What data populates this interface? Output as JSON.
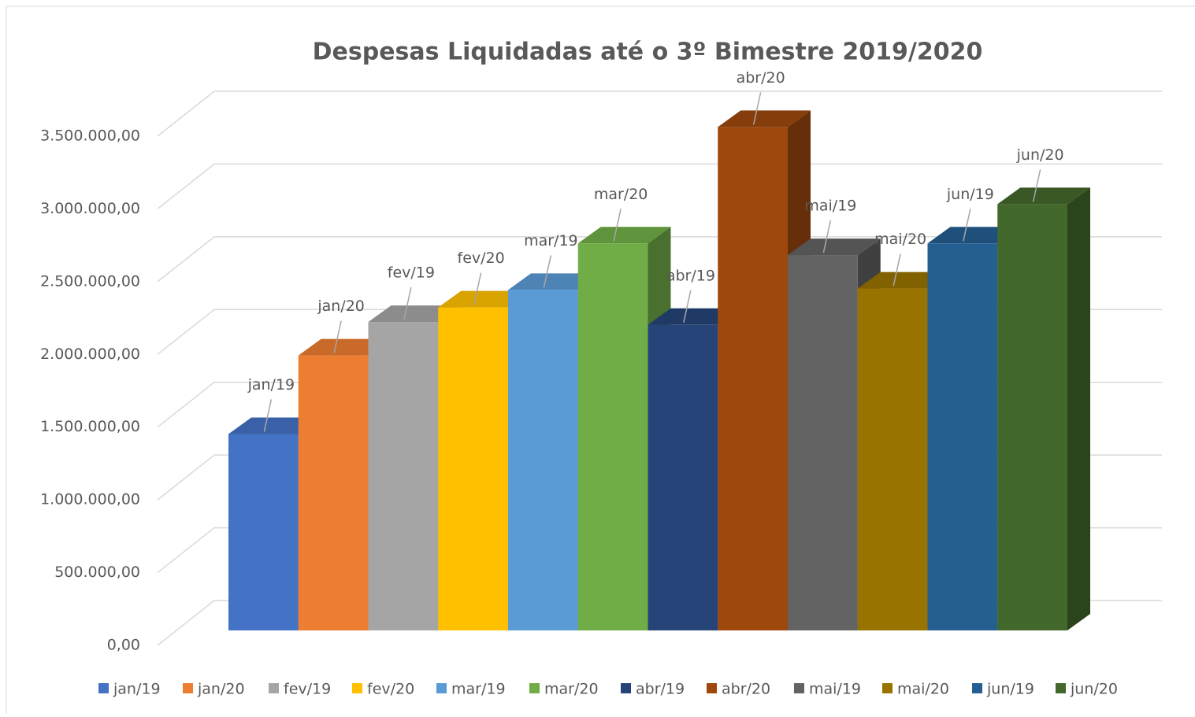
{
  "chart_data": {
    "type": "bar3d",
    "title": "Despesas Liquidadas até o 3º Bimestre 2019/2020",
    "categories": [
      "jan/19",
      "jan/20",
      "fev/19",
      "fev/20",
      "mar/19",
      "mar/20",
      "abr/19",
      "abr/20",
      "mai/19",
      "mai/20",
      "jun/19",
      "jun/20"
    ],
    "values": [
      1350000,
      1890000,
      2120000,
      2220000,
      2340000,
      2660000,
      2100000,
      3460000,
      2580000,
      2350000,
      2660000,
      2930000
    ],
    "colors": [
      "#4472c4",
      "#ed7d31",
      "#a5a5a5",
      "#ffc000",
      "#5b9bd5",
      "#70ad47",
      "#264478",
      "#9e480e",
      "#636363",
      "#997300",
      "#255e91",
      "#43682b"
    ],
    "ylim": [
      0,
      3500000
    ],
    "yticks": [
      {
        "value": 0,
        "label": "0,00"
      },
      {
        "value": 500000,
        "label": "500.000,00"
      },
      {
        "value": 1000000,
        "label": "1.000.000,00"
      },
      {
        "value": 1500000,
        "label": "1.500.000,00"
      },
      {
        "value": 2000000,
        "label": "2.000.000,00"
      },
      {
        "value": 2500000,
        "label": "2.500.000,00"
      },
      {
        "value": 3000000,
        "label": "3.000.000,00"
      },
      {
        "value": 3500000,
        "label": "3.500.000,00"
      }
    ],
    "grid": true,
    "legend": "bottom"
  }
}
